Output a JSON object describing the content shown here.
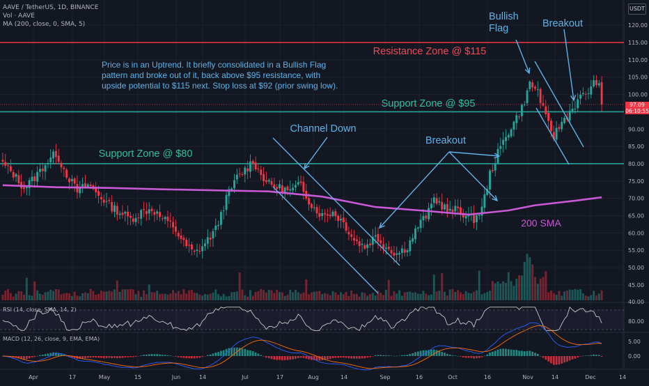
{
  "header": {
    "symbol_line": "AAVE / TetherUS, 1D, BINANCE",
    "vol_line": "Vol · AAVE",
    "ma_line": "MA (200, close, 0, SMA, 5)",
    "currency": "USDT"
  },
  "colors": {
    "background": "#131722",
    "up": "#26a69a",
    "down": "#f23645",
    "sma": "#c85ad6",
    "support": "#26a69a",
    "resistance": "#f23645",
    "annotation": "#5fb2e6",
    "support_text": "#2fbf99",
    "resistance_text": "#f04a58"
  },
  "current_price": {
    "value": "97.09",
    "countdown": "06:10:55"
  },
  "annotations": {
    "description": "Price is in an Uptrend. It briefly consolidated in a Bullish Flag\npattern and broke out of it, back above $95 resistance, with\nupside potential to $115 next. Stop loss at $92 (prior swing low).",
    "resistance_label": "Resistance Zone @ $115",
    "support_95_label": "Support Zone @ $95",
    "support_80_label": "Support Zone @ $80",
    "channel_label": "Channel Down",
    "breakout_label": "Breakout",
    "flag_label": "Bullish\nFlag",
    "breakout2_label": "Breakout",
    "sma_label": "200 SMA"
  },
  "chart_data": [
    {
      "type": "candlestick",
      "title": "AAVE / TetherUS, 1D, BINANCE",
      "y_axis_ticks": [
        45,
        50,
        55,
        60,
        65,
        70,
        75,
        80,
        85,
        90,
        95,
        100,
        105,
        110,
        115,
        120
      ],
      "ylim": [
        42,
        122
      ],
      "x_axis_ticks": [
        "Apr",
        "17",
        "May",
        "15",
        "Jun",
        "14",
        "Jul",
        "17",
        "Aug",
        "14",
        "Sep",
        "16",
        "Oct",
        "16",
        "Nov",
        "14",
        "Dec",
        "14"
      ],
      "anchors": [
        [
          0,
          80
        ],
        [
          4,
          77
        ],
        [
          8,
          73
        ],
        [
          12,
          76
        ],
        [
          16,
          80
        ],
        [
          20,
          83
        ],
        [
          24,
          77
        ],
        [
          28,
          72
        ],
        [
          32,
          74
        ],
        [
          36,
          71
        ],
        [
          40,
          68
        ],
        [
          44,
          66
        ],
        [
          48,
          64
        ],
        [
          52,
          66
        ],
        [
          56,
          67
        ],
        [
          60,
          64
        ],
        [
          64,
          62
        ],
        [
          68,
          57
        ],
        [
          72,
          54
        ],
        [
          76,
          57
        ],
        [
          80,
          61
        ],
        [
          84,
          70
        ],
        [
          88,
          76
        ],
        [
          92,
          79
        ],
        [
          94,
          81
        ],
        [
          96,
          78
        ],
        [
          100,
          74
        ],
        [
          104,
          73
        ],
        [
          108,
          72
        ],
        [
          112,
          74
        ],
        [
          116,
          68
        ],
        [
          120,
          65
        ],
        [
          124,
          66
        ],
        [
          128,
          63
        ],
        [
          132,
          58
        ],
        [
          136,
          56
        ],
        [
          140,
          59
        ],
        [
          144,
          56
        ],
        [
          148,
          54
        ],
        [
          152,
          56
        ],
        [
          156,
          62
        ],
        [
          160,
          66
        ],
        [
          162,
          70
        ],
        [
          165,
          68
        ],
        [
          168,
          66
        ],
        [
          171,
          67
        ],
        [
          174,
          65
        ],
        [
          177,
          64
        ],
        [
          180,
          67
        ],
        [
          183,
          77
        ],
        [
          186,
          83
        ],
        [
          189,
          88
        ],
        [
          192,
          92
        ],
        [
          195,
          96
        ],
        [
          198,
          103
        ],
        [
          201,
          101
        ],
        [
          204,
          93
        ],
        [
          207,
          88
        ],
        [
          210,
          92
        ],
        [
          213,
          95
        ],
        [
          217,
          99
        ],
        [
          220,
          101
        ],
        [
          223,
          104
        ],
        [
          225,
          100
        ]
      ],
      "sma_200": [
        [
          0,
          73.8
        ],
        [
          20,
          73.2
        ],
        [
          40,
          73.0
        ],
        [
          60,
          72.6
        ],
        [
          80,
          72.3
        ],
        [
          100,
          72.0
        ],
        [
          120,
          70.5
        ],
        [
          140,
          67.5
        ],
        [
          160,
          66.3
        ],
        [
          175,
          65.3
        ],
        [
          190,
          66.5
        ],
        [
          200,
          68.0
        ],
        [
          215,
          69.3
        ],
        [
          225,
          70.3
        ]
      ],
      "levels": {
        "resistance": 115,
        "support_high": 95,
        "support_low": 80
      },
      "current_price": 97.09
    },
    {
      "type": "line",
      "title": "RSI (14, close, SMA, 14, 2)",
      "y_axis_ticks": [
        40,
        80
      ],
      "levels": [
        70,
        30
      ]
    },
    {
      "type": "histogram",
      "title": "MACD (12, 26, close, 9, EMA, EMA)",
      "y_axis_ticks": [
        5.0,
        0.0
      ]
    }
  ]
}
